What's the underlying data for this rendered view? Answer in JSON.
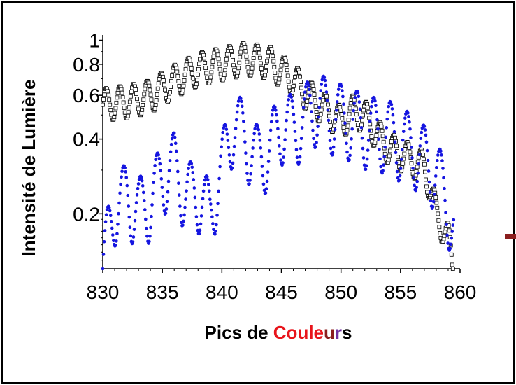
{
  "chart_data": {
    "type": "scatter",
    "xlabel_parts": [
      {
        "text": "Pics de ",
        "color": "#000000"
      },
      {
        "text": "Coule",
        "color": "#e8141b"
      },
      {
        "text": "u",
        "color": "#8b1e1e"
      },
      {
        "text": "r",
        "color": "#7030a0"
      },
      {
        "text": "s",
        "color": "#000000"
      }
    ],
    "ylabel": "Intensité de Lumière",
    "x_ticks": [
      "830",
      "835",
      "840",
      "845",
      "850",
      "855",
      "860"
    ],
    "y_ticks": [
      "1",
      "0.8",
      "0.6",
      "0.4",
      "0.2"
    ],
    "xlim": [
      830,
      860
    ],
    "ylim": [
      0.12,
      1.05
    ],
    "yscale": "log",
    "grid": false,
    "series": [
      {
        "marker": "open-square",
        "color": "#000000",
        "anchors": [
          [
            830,
            0.55
          ],
          [
            830.4,
            0.56
          ],
          [
            832,
            0.57
          ],
          [
            834,
            0.6
          ],
          [
            836,
            0.69
          ],
          [
            838,
            0.77
          ],
          [
            840,
            0.81
          ],
          [
            842,
            0.85
          ],
          [
            844,
            0.82
          ],
          [
            846,
            0.7
          ],
          [
            847,
            0.62
          ],
          [
            848,
            0.56
          ],
          [
            850,
            0.47
          ],
          [
            851,
            0.52
          ],
          [
            852,
            0.5
          ],
          [
            853,
            0.42
          ],
          [
            854,
            0.37
          ],
          [
            856,
            0.33
          ],
          [
            857,
            0.31
          ],
          [
            858,
            0.2
          ],
          [
            859.0,
            0.16
          ],
          [
            859.4,
            0.12
          ]
        ],
        "period": 1.15,
        "mod_depth": 0.15
      },
      {
        "marker": "dot",
        "color": "#1515e0",
        "anchors": [
          [
            830,
            0.12
          ],
          [
            831,
            0.22
          ],
          [
            832,
            0.24
          ],
          [
            833,
            0.21
          ],
          [
            834,
            0.23
          ],
          [
            835,
            0.29
          ],
          [
            836,
            0.32
          ],
          [
            837,
            0.24
          ],
          [
            838,
            0.25
          ],
          [
            839,
            0.2
          ],
          [
            840,
            0.31
          ],
          [
            841,
            0.48
          ],
          [
            842,
            0.41
          ],
          [
            843,
            0.34
          ],
          [
            844,
            0.37
          ],
          [
            845,
            0.47
          ],
          [
            846,
            0.45
          ],
          [
            847,
            0.5
          ],
          [
            848,
            0.56
          ],
          [
            849,
            0.52
          ],
          [
            850,
            0.5
          ],
          [
            851,
            0.48
          ],
          [
            852,
            0.45
          ],
          [
            853,
            0.44
          ],
          [
            854,
            0.43
          ],
          [
            855,
            0.4
          ],
          [
            856,
            0.38
          ],
          [
            857,
            0.34
          ],
          [
            858,
            0.3
          ],
          [
            859,
            0.22
          ],
          [
            859.5,
            0.17
          ]
        ],
        "period": 1.4,
        "mod_depth": 0.33
      }
    ]
  },
  "decor": {
    "arrow_color": "#8b1e1e"
  }
}
